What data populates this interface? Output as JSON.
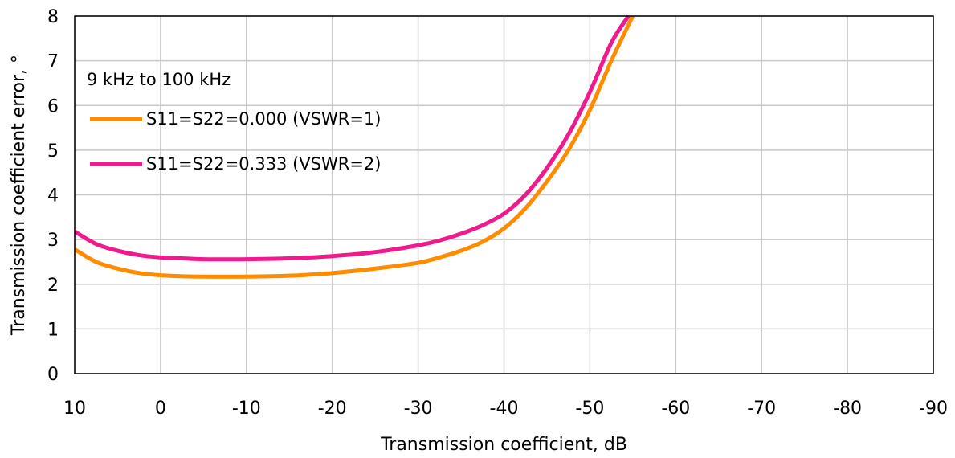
{
  "chart_data": {
    "type": "line",
    "title": "",
    "xlabel": "Transmission coefficient, dB",
    "ylabel": "Transmission coefficient error, °",
    "xlim": [
      10,
      -90
    ],
    "ylim": [
      0,
      8
    ],
    "x_ticks": [
      "10",
      "0",
      "-10",
      "-20",
      "-30",
      "-40",
      "-50",
      "-60",
      "-70",
      "-80",
      "-90"
    ],
    "y_ticks": [
      "0",
      "1",
      "2",
      "3",
      "4",
      "5",
      "6",
      "7",
      "8"
    ],
    "grid": true,
    "annotation": "9 kHz to 100 kHz",
    "legend_position": "top-left",
    "series": [
      {
        "name": "S11=S22=0.000 (VSWR=1)",
        "color": "#ff8c00",
        "x": [
          10,
          7.5,
          5,
          2.5,
          0,
          -2.5,
          -5,
          -10,
          -15,
          -20,
          -25,
          -30,
          -32.5,
          -35,
          -37.5,
          -40,
          -42.5,
          -45,
          -47.5,
          -50,
          -52.5,
          -55
        ],
        "y": [
          2.78,
          2.5,
          2.35,
          2.25,
          2.2,
          2.18,
          2.17,
          2.17,
          2.19,
          2.25,
          2.35,
          2.48,
          2.6,
          2.75,
          2.95,
          3.25,
          3.7,
          4.3,
          5.0,
          5.9,
          7.0,
          8.0
        ]
      },
      {
        "name": "S11=S22=0.333 (VSWR=2)",
        "color": "#ee1a8e",
        "x": [
          10,
          7.5,
          5,
          2.5,
          0,
          -2.5,
          -5,
          -10,
          -15,
          -20,
          -25,
          -30,
          -32.5,
          -35,
          -37.5,
          -40,
          -42.5,
          -45,
          -47.5,
          -50,
          -52.5,
          -54.5
        ],
        "y": [
          3.18,
          2.9,
          2.75,
          2.65,
          2.6,
          2.58,
          2.56,
          2.56,
          2.58,
          2.63,
          2.72,
          2.87,
          2.98,
          3.13,
          3.32,
          3.58,
          4.0,
          4.6,
          5.35,
          6.3,
          7.4,
          8.0
        ]
      }
    ]
  }
}
